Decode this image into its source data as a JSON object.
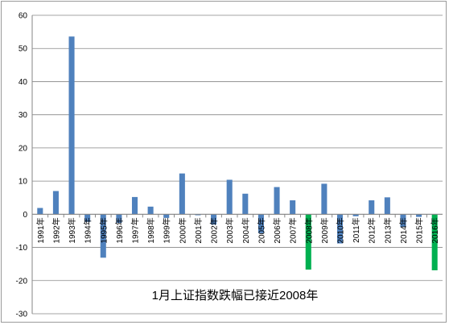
{
  "chart_data": {
    "type": "bar",
    "title": "",
    "xlabel": "",
    "ylabel": "",
    "annotation": "1月上证指数跌幅已接近2008年",
    "categories": [
      "1991年",
      "1992年",
      "1993年",
      "1994年",
      "1995年",
      "1996年",
      "1997年",
      "1998年",
      "1999年",
      "2000年",
      "2001年",
      "2002年",
      "2003年",
      "2004年",
      "2005年",
      "2006年",
      "2007年",
      "2008年",
      "2009年",
      "2010年",
      "2011年",
      "2012年",
      "2013年",
      "2014年",
      "2015年",
      "2016年"
    ],
    "values": [
      1.9,
      7.0,
      53.6,
      -2.3,
      -13.1,
      -2.6,
      5.2,
      2.3,
      -1.1,
      12.3,
      -0.3,
      -3.1,
      10.4,
      6.2,
      -5.7,
      8.2,
      4.2,
      -16.7,
      9.2,
      -8.8,
      -0.6,
      4.2,
      5.1,
      -3.9,
      -0.8,
      -16.9
    ],
    "highlight": [
      "2008年",
      "2016年"
    ],
    "ylim": [
      -30,
      60
    ],
    "yticks": [
      -30,
      -20,
      -10,
      0,
      10,
      20,
      30,
      40,
      50,
      60
    ],
    "grid": true,
    "legend": false,
    "colors": {
      "bar": "#4f81bd",
      "highlight": "#00b050",
      "grid": "#868686",
      "axis": "#868686"
    }
  }
}
